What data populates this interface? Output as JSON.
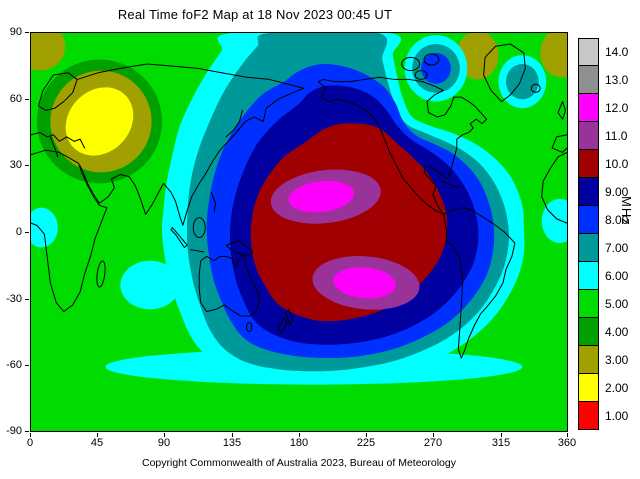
{
  "title": "Real Time foF2 Map at 18 Nov 2023 00:45 UT",
  "copyright": "Copyright Commonwealth of Australia 2023, Bureau of Meteorology",
  "colorbar": {
    "unit": "MHz",
    "entries": [
      {
        "label": "14.0",
        "color": "#c8c8c8"
      },
      {
        "label": "13.0",
        "color": "#8f8f8f"
      },
      {
        "label": "12.0",
        "color": "#ff00ff"
      },
      {
        "label": "11.0",
        "color": "#993399"
      },
      {
        "label": "10.0",
        "color": "#a00000"
      },
      {
        "label": "9.00",
        "color": "#0000a0"
      },
      {
        "label": "8.00",
        "color": "#0030ff"
      },
      {
        "label": "7.00",
        "color": "#009999"
      },
      {
        "label": "6.00",
        "color": "#00ffff"
      },
      {
        "label": "5.00",
        "color": "#00dc00"
      },
      {
        "label": "4.00",
        "color": "#00a000"
      },
      {
        "label": "3.00",
        "color": "#a0a000"
      },
      {
        "label": "2.00",
        "color": "#ffff00"
      },
      {
        "label": "1.00",
        "color": "#ff0000"
      }
    ]
  },
  "axes": {
    "x_ticks": [
      "0",
      "45",
      "90",
      "135",
      "180",
      "225",
      "270",
      "315",
      "360"
    ],
    "y_ticks": [
      "90",
      "60",
      "30",
      "0",
      "-30",
      "-60",
      "-90"
    ]
  },
  "chart_data": {
    "type": "heatmap",
    "title": "Real Time foF2 Map at 18 Nov 2023 00:45 UT",
    "xlabel": "",
    "ylabel": "",
    "unit": "MHz",
    "xlim": [
      0,
      360
    ],
    "ylim": [
      -90,
      90
    ],
    "grid": false,
    "legend_position": "right",
    "contour_levels_MHz": [
      1,
      2,
      3,
      4,
      5,
      6,
      7,
      8,
      9,
      10,
      11,
      12,
      13,
      14
    ],
    "x_longitude_deg": [
      0,
      30,
      60,
      90,
      120,
      150,
      180,
      210,
      240,
      270,
      300,
      330,
      360
    ],
    "y_latitude_deg": [
      90,
      60,
      30,
      0,
      -30,
      -60,
      -90
    ],
    "values_foF2_MHz": [
      [
        3,
        4,
        5,
        5,
        5,
        6,
        7,
        7,
        6,
        5,
        3,
        5,
        3
      ],
      [
        4,
        2,
        2,
        5,
        6,
        7,
        8,
        9,
        8,
        6,
        5,
        6,
        4
      ],
      [
        5,
        4,
        5,
        6,
        7,
        9,
        10,
        10,
        10,
        9,
        7,
        5,
        5
      ],
      [
        6,
        5,
        5,
        6,
        8,
        10,
        10,
        10,
        10,
        10,
        9,
        6,
        6
      ],
      [
        5,
        5,
        6,
        6,
        7,
        9,
        10,
        11,
        11,
        9,
        7,
        5,
        5
      ],
      [
        5,
        5,
        6,
        6,
        6,
        7,
        7,
        7,
        7,
        6,
        6,
        5,
        5
      ],
      [
        5,
        5,
        5,
        5,
        5,
        5,
        5,
        5,
        5,
        5,
        5,
        5,
        5
      ]
    ],
    "maxima": [
      {
        "lon": 192,
        "lat": 15,
        "foF2_MHz": 12.5
      },
      {
        "lon": 227,
        "lat": -23,
        "foF2_MHz": 12.5
      }
    ],
    "minima": [
      {
        "lon": 46,
        "lat": 50,
        "foF2_MHz": 2
      }
    ]
  }
}
